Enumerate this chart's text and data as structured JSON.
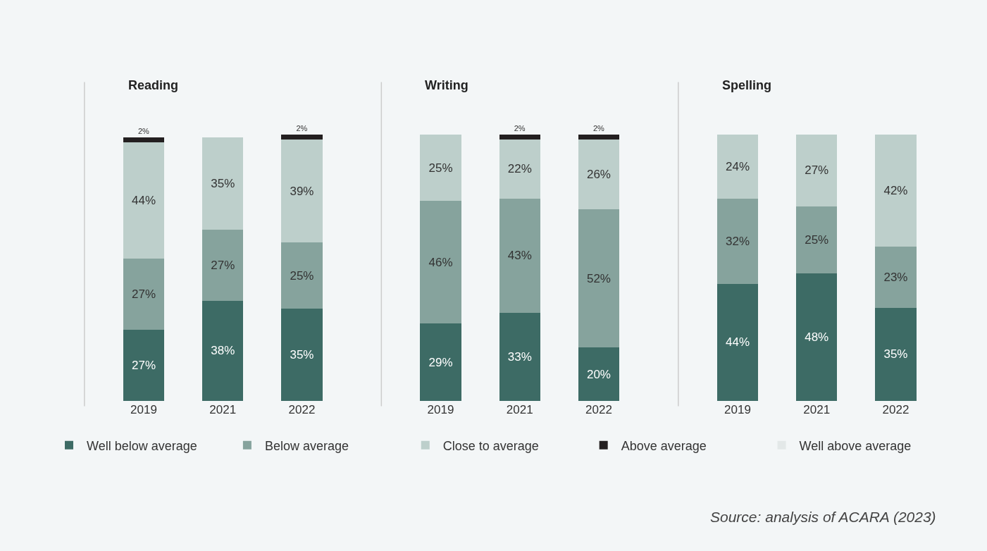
{
  "chart_data": [
    {
      "type": "bar",
      "title": "Reading",
      "categories": [
        "2019",
        "2021",
        "2022"
      ],
      "stacked": true,
      "legend": "bottom",
      "series": [
        {
          "name": "Well below average",
          "color": "#3d6b65",
          "values": [
            27,
            38,
            35
          ],
          "value_labels": [
            "27%",
            "38%",
            "35%"
          ]
        },
        {
          "name": "Below average",
          "color": "#86a39d",
          "values": [
            27,
            27,
            25
          ],
          "value_labels": [
            "27%",
            "27%",
            "25%"
          ]
        },
        {
          "name": "Close to average",
          "color": "#bdcfcb",
          "values": [
            44,
            35,
            39
          ],
          "value_labels": [
            "44%",
            "35%",
            "39%"
          ]
        },
        {
          "name": "Above average",
          "color": "#231f20",
          "values": [
            2,
            0,
            2
          ],
          "value_labels": [
            "2%",
            null,
            "2%"
          ]
        },
        {
          "name": "Well above average",
          "color": "#e3e8e8",
          "values": [
            0,
            0,
            0
          ],
          "value_labels": [
            null,
            null,
            null
          ]
        }
      ]
    },
    {
      "type": "bar",
      "title": "Writing",
      "categories": [
        "2019",
        "2021",
        "2022"
      ],
      "stacked": true,
      "series": [
        {
          "color": "#3d6b65",
          "values": [
            29,
            33,
            20
          ],
          "value_labels": [
            "29%",
            "33%",
            "20%"
          ]
        },
        {
          "color": "#86a39d",
          "values": [
            46,
            43,
            52
          ],
          "value_labels": [
            "46%",
            "43%",
            "52%"
          ]
        },
        {
          "color": "#bdcfcb",
          "values": [
            25,
            22,
            26
          ],
          "value_labels": [
            "25%",
            "22%",
            "26%"
          ]
        },
        {
          "color": "#231f20",
          "values": [
            0,
            2,
            2
          ],
          "value_labels": [
            null,
            "2%",
            "2%"
          ]
        },
        {
          "color": "#e3e8e8",
          "values": [
            0,
            0,
            0
          ],
          "value_labels": [
            null,
            null,
            null
          ]
        }
      ]
    },
    {
      "type": "bar",
      "title": "Spelling",
      "categories": [
        "2019",
        "2021",
        "2022"
      ],
      "stacked": true,
      "annotations": [
        "Source: analysis of ACARA (2023)"
      ],
      "series": [
        {
          "color": "#3d6b65",
          "values": [
            44,
            48,
            35
          ],
          "value_labels": [
            "44%",
            "48%",
            "35%"
          ]
        },
        {
          "color": "#86a39d",
          "values": [
            32,
            25,
            23
          ],
          "value_labels": [
            "32%",
            "25%",
            "23%"
          ]
        },
        {
          "color": "#bdcfcb",
          "values": [
            24,
            27,
            42
          ],
          "value_labels": [
            "24%",
            "27%",
            "42%"
          ]
        },
        {
          "color": "#231f20",
          "values": [
            0,
            0,
            0
          ],
          "value_labels": [
            null,
            null,
            null
          ]
        },
        {
          "color": "#e3e8e8",
          "values": [
            0,
            0,
            0
          ],
          "value_labels": [
            null,
            null,
            null
          ]
        }
      ]
    }
  ]
}
